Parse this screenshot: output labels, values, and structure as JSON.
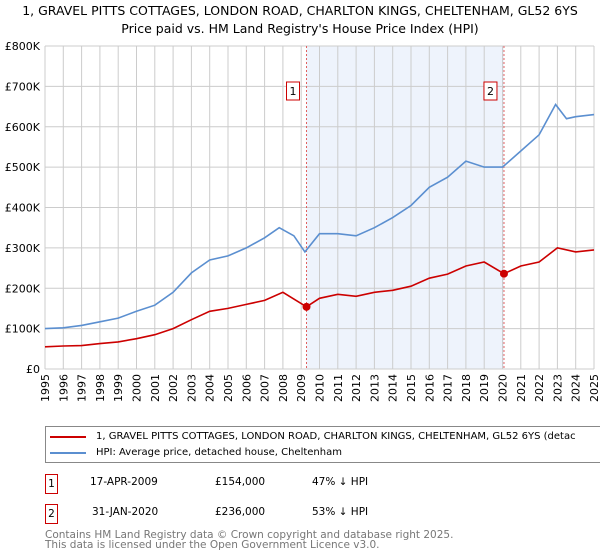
{
  "title_line1": "1, GRAVEL PITTS COTTAGES, LONDON ROAD, CHARLTON KINGS, CHELTENHAM, GL52 6YS",
  "title_line2": "Price paid vs. HM Land Registry's House Price Index (HPI)",
  "legend": {
    "property": "1, GRAVEL PITTS COTTAGES, LONDON ROAD, CHARLTON KINGS, CHELTENHAM, GL52 6YS (detac",
    "hpi": "HPI: Average price, detached house, Cheltenham"
  },
  "transactions": [
    {
      "id": "1",
      "date": "17-APR-2009",
      "price": "£154,000",
      "delta": "47% ↓ HPI"
    },
    {
      "id": "2",
      "date": "31-JAN-2020",
      "price": "£236,000",
      "delta": "53% ↓ HPI"
    }
  ],
  "footer_line1": "Contains HM Land Registry data © Crown copyright and database right 2025.",
  "footer_line2": "This data is licensed under the Open Government Licence v3.0.",
  "colors": {
    "property": "#cc0000",
    "hpi": "#5b8fd0",
    "shade": "#eef3fc"
  },
  "chart_data": {
    "type": "line",
    "xlim": [
      1995,
      2025
    ],
    "ylim": [
      0,
      800000
    ],
    "yticks": [
      0,
      100000,
      200000,
      300000,
      400000,
      500000,
      600000,
      700000,
      800000
    ],
    "ytick_labels": [
      "£0",
      "£100K",
      "£200K",
      "£300K",
      "£400K",
      "£500K",
      "£600K",
      "£700K",
      "£800K"
    ],
    "xticks": [
      "1995",
      "1996",
      "1997",
      "1998",
      "1999",
      "2000",
      "2001",
      "2002",
      "2003",
      "2004",
      "2005",
      "2006",
      "2007",
      "2008",
      "2009",
      "2010",
      "2011",
      "2012",
      "2013",
      "2014",
      "2015",
      "2016",
      "2017",
      "2018",
      "2019",
      "2020",
      "2021",
      "2022",
      "2023",
      "2024",
      "2025"
    ],
    "grid": true,
    "shaded_range": [
      2009.29,
      2020.08
    ],
    "markers": [
      {
        "label": "1",
        "x": 2009.29,
        "y": 154000
      },
      {
        "label": "2",
        "x": 2020.08,
        "y": 236000
      }
    ],
    "series": [
      {
        "name": "property",
        "x": [
          1995,
          1996,
          1997,
          1998,
          1999,
          2000,
          2001,
          2002,
          2003,
          2004,
          2005,
          2006,
          2007,
          2008,
          2009.29,
          2010,
          2011,
          2012,
          2013,
          2014,
          2015,
          2016,
          2017,
          2018,
          2019,
          2020.08,
          2021,
          2022,
          2023,
          2024,
          2025
        ],
        "values": [
          55000,
          57000,
          58000,
          63000,
          67000,
          75000,
          85000,
          100000,
          122000,
          143000,
          150000,
          160000,
          170000,
          190000,
          154000,
          175000,
          185000,
          180000,
          190000,
          195000,
          205000,
          225000,
          235000,
          255000,
          265000,
          236000,
          255000,
          265000,
          300000,
          290000,
          295000
        ]
      },
      {
        "name": "hpi",
        "x": [
          1995,
          1996,
          1997,
          1998,
          1999,
          2000,
          2001,
          2002,
          2003,
          2004,
          2005,
          2006,
          2007,
          2007.8,
          2008.6,
          2009.2,
          2010,
          2011,
          2012,
          2013,
          2014,
          2015,
          2016,
          2017,
          2018,
          2019,
          2020,
          2021,
          2022,
          2022.9,
          2023.5,
          2024,
          2025
        ],
        "values": [
          100000,
          102000,
          108000,
          117000,
          126000,
          143000,
          158000,
          190000,
          238000,
          270000,
          280000,
          300000,
          325000,
          350000,
          330000,
          290000,
          335000,
          335000,
          330000,
          350000,
          375000,
          405000,
          450000,
          475000,
          515000,
          500000,
          500000,
          540000,
          580000,
          655000,
          620000,
          625000,
          630000
        ]
      }
    ]
  }
}
